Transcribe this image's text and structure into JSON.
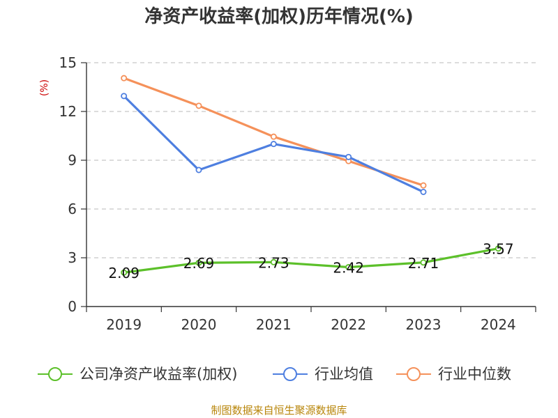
{
  "chart_data": {
    "type": "line",
    "title": "净资产收益率(加权)历年情况(%)",
    "unit_label": "(%)",
    "categories": [
      "2019",
      "2020",
      "2021",
      "2022",
      "2023",
      "2024"
    ],
    "ylim": [
      0,
      15
    ],
    "yticks": [
      0,
      3,
      6,
      9,
      12,
      15
    ],
    "grid": true,
    "legend_position": "bottom",
    "series": [
      {
        "name": "公司净资产收益率(加权)",
        "color": "#5cc02a",
        "values": [
          2.09,
          2.69,
          2.73,
          2.42,
          2.71,
          3.57
        ],
        "labels": [
          "2.09",
          "2.69",
          "2.73",
          "2.42",
          "2.71",
          "3.57"
        ]
      },
      {
        "name": "行业均值",
        "color": "#4e7fe0",
        "values": [
          12.95,
          8.4,
          10.0,
          9.2,
          7.05,
          null
        ]
      },
      {
        "name": "行业中位数",
        "color": "#f5915a",
        "values": [
          14.05,
          12.35,
          10.45,
          8.95,
          7.45,
          null
        ]
      }
    ]
  },
  "source_text": "制图数据来自恒生聚源数据库"
}
